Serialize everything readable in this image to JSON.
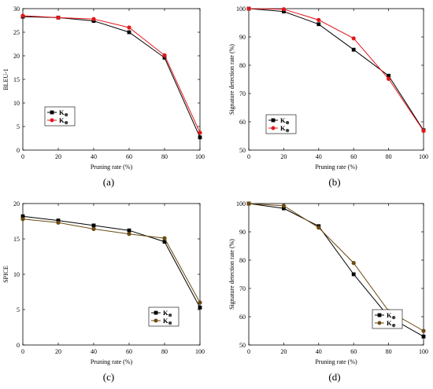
{
  "chart_data": [
    {
      "type": "line",
      "panel_label": "(a)",
      "xlabel": "Pruning rate (%)",
      "ylabel": "BLEU-1",
      "x": [
        0,
        20,
        40,
        60,
        80,
        100
      ],
      "xlim": [
        0,
        100
      ],
      "ylim": [
        0,
        30
      ],
      "xticks": [
        0,
        20,
        40,
        60,
        80,
        100
      ],
      "yticks": [
        0,
        5,
        10,
        15,
        20,
        25,
        30
      ],
      "legend_position": "lower-left",
      "series": [
        {
          "name": "K",
          "subscript": "⊗",
          "marker": "square",
          "color": "#000000",
          "values": [
            28.3,
            28.1,
            27.4,
            25.0,
            19.6,
            2.7
          ]
        },
        {
          "name": "K",
          "subscript": "⊗",
          "marker": "circle",
          "color": "#e3171b",
          "values": [
            28.5,
            28.1,
            27.8,
            26.0,
            20.1,
            3.7
          ]
        }
      ]
    },
    {
      "type": "line",
      "panel_label": "(b)",
      "xlabel": "Pruning rate (%)",
      "ylabel": "Signature detection rate (%)",
      "x": [
        0,
        20,
        40,
        60,
        80,
        100
      ],
      "xlim": [
        0,
        100
      ],
      "ylim": [
        50,
        100
      ],
      "xticks": [
        0,
        20,
        40,
        60,
        80,
        100
      ],
      "yticks": [
        50,
        60,
        70,
        80,
        90,
        100
      ],
      "legend_position": "lower-left",
      "series": [
        {
          "name": "K",
          "subscript": "⊗",
          "marker": "square",
          "color": "#000000",
          "values": [
            100,
            99.0,
            94.5,
            85.5,
            76.3,
            57.0
          ]
        },
        {
          "name": "K",
          "subscript": "⊗",
          "marker": "circle",
          "color": "#e3171b",
          "values": [
            100,
            99.8,
            96.0,
            89.5,
            75.2,
            56.8
          ]
        }
      ]
    },
    {
      "type": "line",
      "panel_label": "(c)",
      "xlabel": "Pruning rate (%)",
      "ylabel": "SPICE",
      "x": [
        0,
        20,
        40,
        60,
        80,
        100
      ],
      "xlim": [
        0,
        100
      ],
      "ylim": [
        0,
        20
      ],
      "xticks": [
        0,
        20,
        40,
        60,
        80,
        100
      ],
      "yticks": [
        0,
        5,
        10,
        15,
        20
      ],
      "legend_position": "lower-right",
      "series": [
        {
          "name": "K",
          "subscript": "⊗",
          "marker": "square",
          "color": "#000000",
          "values": [
            18.2,
            17.6,
            16.9,
            16.2,
            14.6,
            5.3
          ]
        },
        {
          "name": "K",
          "subscript": "⊗",
          "marker": "circle",
          "color": "#6b4a12",
          "values": [
            17.8,
            17.3,
            16.4,
            15.7,
            15.1,
            6.0
          ]
        }
      ]
    },
    {
      "type": "line",
      "panel_label": "(d)",
      "xlabel": "Pruning rate (%)",
      "ylabel": "Signature detection rate (%)",
      "x": [
        0,
        20,
        40,
        60,
        80,
        100
      ],
      "xlim": [
        0,
        100
      ],
      "ylim": [
        50,
        100
      ],
      "xticks": [
        0,
        20,
        40,
        60,
        80,
        100
      ],
      "yticks": [
        50,
        60,
        70,
        80,
        90,
        100
      ],
      "legend_position": "lower-right",
      "series": [
        {
          "name": "K",
          "subscript": "⊗",
          "marker": "square",
          "color": "#000000",
          "values": [
            100,
            98.3,
            92.0,
            75.0,
            60.0,
            53.0
          ]
        },
        {
          "name": "K",
          "subscript": "⊗",
          "marker": "circle",
          "color": "#6b4a12",
          "values": [
            100,
            99.2,
            91.5,
            79.0,
            62.0,
            55.0
          ]
        }
      ]
    }
  ]
}
